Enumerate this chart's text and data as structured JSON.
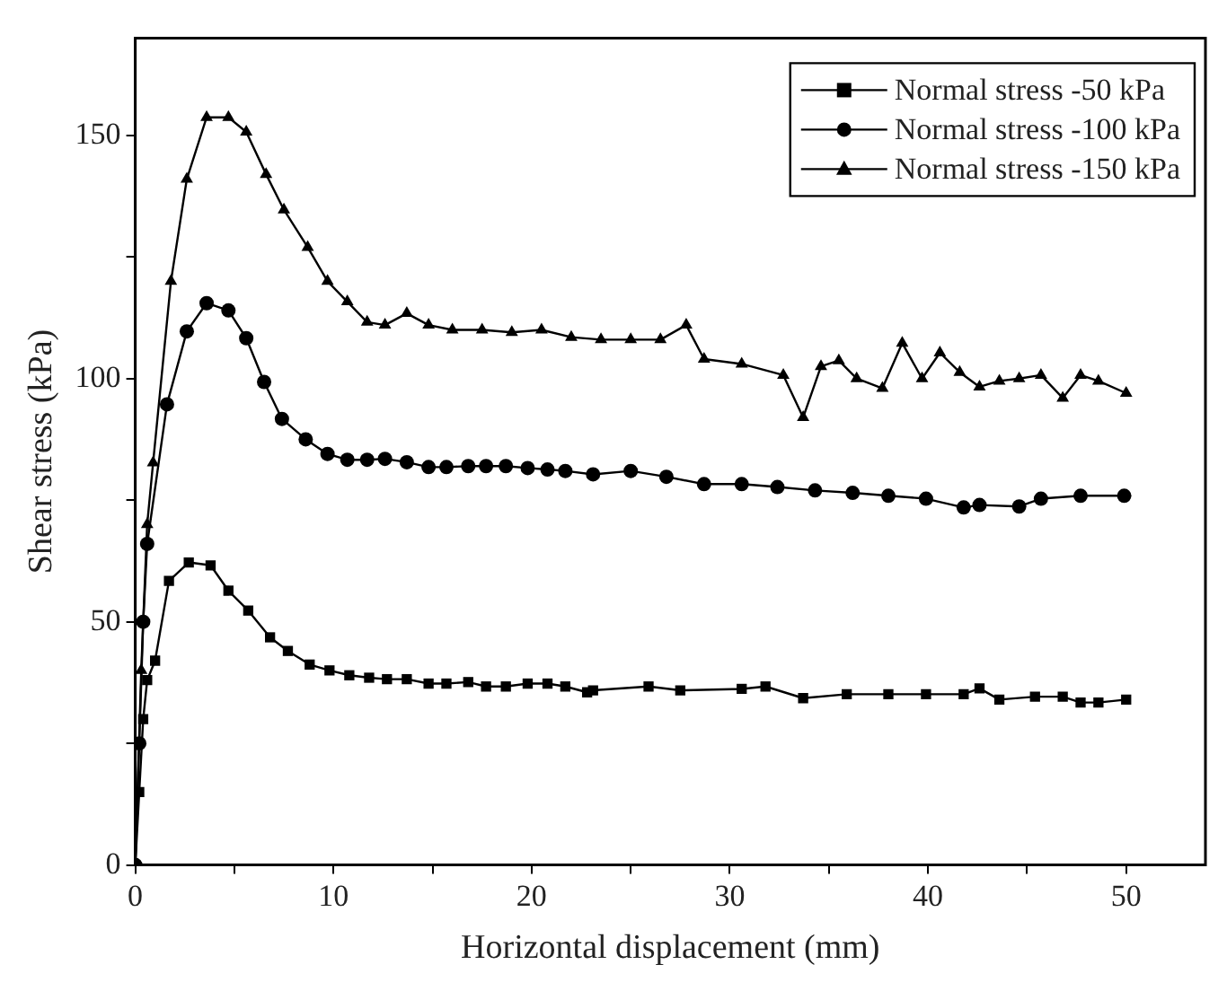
{
  "chart_data": {
    "type": "line",
    "xlabel": "Horizontal displacement (mm)",
    "ylabel": "Shear stress (kPa)",
    "xlim": [
      0,
      54
    ],
    "ylim": [
      0,
      170
    ],
    "xticks": [
      0,
      {
        "value": 5,
        "label": null
      },
      10,
      {
        "value": 15,
        "label": null
      },
      20,
      {
        "value": 25,
        "label": null
      },
      30,
      {
        "value": 35,
        "label": null
      },
      40,
      {
        "value": 45,
        "label": null
      },
      50
    ],
    "yticks": [
      0,
      {
        "value": 25,
        "label": null
      },
      50,
      {
        "value": 75,
        "label": null
      },
      100,
      {
        "value": 125,
        "label": null
      },
      150
    ],
    "grid": false,
    "legend": "top right",
    "line_style": "solid",
    "series": [
      {
        "name": "Normal stress -50 kPa",
        "color": "#000000",
        "marker": "square",
        "x": [
          0,
          0.2,
          0.4,
          0.6,
          1.0,
          1.7,
          2.7,
          3.8,
          4.7,
          5.7,
          6.8,
          7.7,
          8.8,
          9.8,
          10.8,
          11.8,
          12.7,
          13.7,
          14.8,
          15.7,
          16.8,
          17.7,
          18.7,
          19.8,
          20.8,
          21.7,
          22.8,
          23.1,
          25.9,
          27.5,
          30.6,
          31.8,
          33.7,
          35.9,
          38,
          39.9,
          41.8,
          42.6,
          43.6,
          45.4,
          46.8,
          47.7,
          48.6,
          50
        ],
        "values": [
          0,
          15,
          30,
          38,
          42,
          58.4,
          62.2,
          61.6,
          56.4,
          52.3,
          46.8,
          44,
          41.2,
          40,
          39,
          38.5,
          38.2,
          38.2,
          37.3,
          37.3,
          37.6,
          36.7,
          36.7,
          37.3,
          37.3,
          36.7,
          35.5,
          35.9,
          36.7,
          35.9,
          36.2,
          36.7,
          34.3,
          35.1,
          35.1,
          35.1,
          35.1,
          36.3,
          34,
          34.6,
          34.6,
          33.4,
          33.4,
          34
        ]
      },
      {
        "name": "Normal stress -100 kPa",
        "color": "#000000",
        "marker": "circle",
        "x": [
          0,
          0.2,
          0.4,
          0.6,
          1.6,
          2.6,
          3.6,
          4.7,
          5.6,
          6.5,
          7.4,
          8.6,
          9.7,
          10.7,
          11.7,
          12.6,
          13.7,
          14.8,
          15.7,
          16.8,
          17.7,
          18.7,
          19.8,
          20.8,
          21.7,
          23.1,
          25,
          26.8,
          28.7,
          30.6,
          32.4,
          34.3,
          36.2,
          38,
          39.9,
          41.8,
          42.6,
          44.6,
          45.7,
          47.7,
          49.9
        ],
        "values": [
          0,
          25,
          50,
          66,
          94.7,
          109.7,
          115.5,
          114,
          108.3,
          99.3,
          91.7,
          87.5,
          84.5,
          83.3,
          83.3,
          83.5,
          82.8,
          81.8,
          81.8,
          82,
          82,
          82,
          81.6,
          81.3,
          81,
          80.3,
          81,
          79.8,
          78.3,
          78.3,
          77.7,
          77,
          76.5,
          75.9,
          75.3,
          73.5,
          74,
          73.7,
          75.3,
          75.9,
          75.9
        ]
      },
      {
        "name": "Normal stress -150 kPa",
        "color": "#000000",
        "marker": "triangle",
        "x": [
          0,
          0.3,
          0.6,
          0.9,
          1.8,
          2.6,
          3.6,
          4.7,
          5.6,
          6.6,
          7.5,
          8.7,
          9.7,
          10.7,
          11.7,
          12.6,
          13.7,
          14.8,
          16,
          17.5,
          19,
          20.5,
          22,
          23.5,
          25,
          26.5,
          27.8,
          28.7,
          30.6,
          32.7,
          33.7,
          34.6,
          35.5,
          36.4,
          37.7,
          38.7,
          39.7,
          40.6,
          41.6,
          42.6,
          43.6,
          44.6,
          45.7,
          46.8,
          47.7,
          48.6,
          50
        ],
        "values": [
          0,
          40,
          70,
          82.7,
          120,
          141,
          153.7,
          153.7,
          150.7,
          142,
          134.7,
          127,
          120,
          115.8,
          111.6,
          111,
          113.4,
          111,
          110,
          110,
          109.5,
          110,
          108.5,
          108,
          108,
          108,
          111,
          104,
          103,
          100.7,
          92,
          102.5,
          103.7,
          100,
          98,
          107.3,
          100,
          105.3,
          101.3,
          98.3,
          99.5,
          100,
          100.7,
          96,
          100.7,
          99.5,
          97
        ]
      }
    ]
  }
}
